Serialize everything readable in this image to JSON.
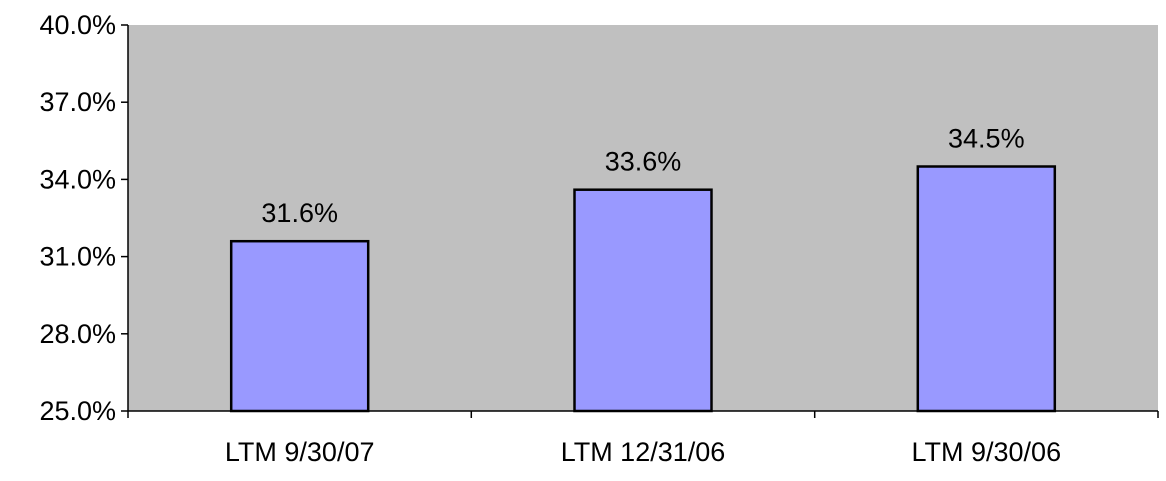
{
  "chart_data": {
    "type": "bar",
    "title": "",
    "xlabel": "",
    "ylabel": "",
    "categories": [
      "LTM 9/30/07",
      "LTM 12/31/06",
      "LTM 9/30/06"
    ],
    "values": [
      31.6,
      33.6,
      34.5
    ],
    "data_labels": [
      "31.6%",
      "33.6%",
      "34.5%"
    ],
    "ylim": [
      25.0,
      40.0
    ],
    "yticks": [
      25.0,
      28.0,
      31.0,
      34.0,
      37.0,
      40.0
    ],
    "ytick_labels": [
      "25.0%",
      "28.0%",
      "31.0%",
      "34.0%",
      "37.0%",
      "40.0%"
    ],
    "grid": false,
    "legend": "none",
    "colors": {
      "plot_background": "#c0c0c0",
      "bar_fill": "#9999ff",
      "bar_stroke": "#000000",
      "axis": "#000000",
      "text": "#000000"
    }
  }
}
